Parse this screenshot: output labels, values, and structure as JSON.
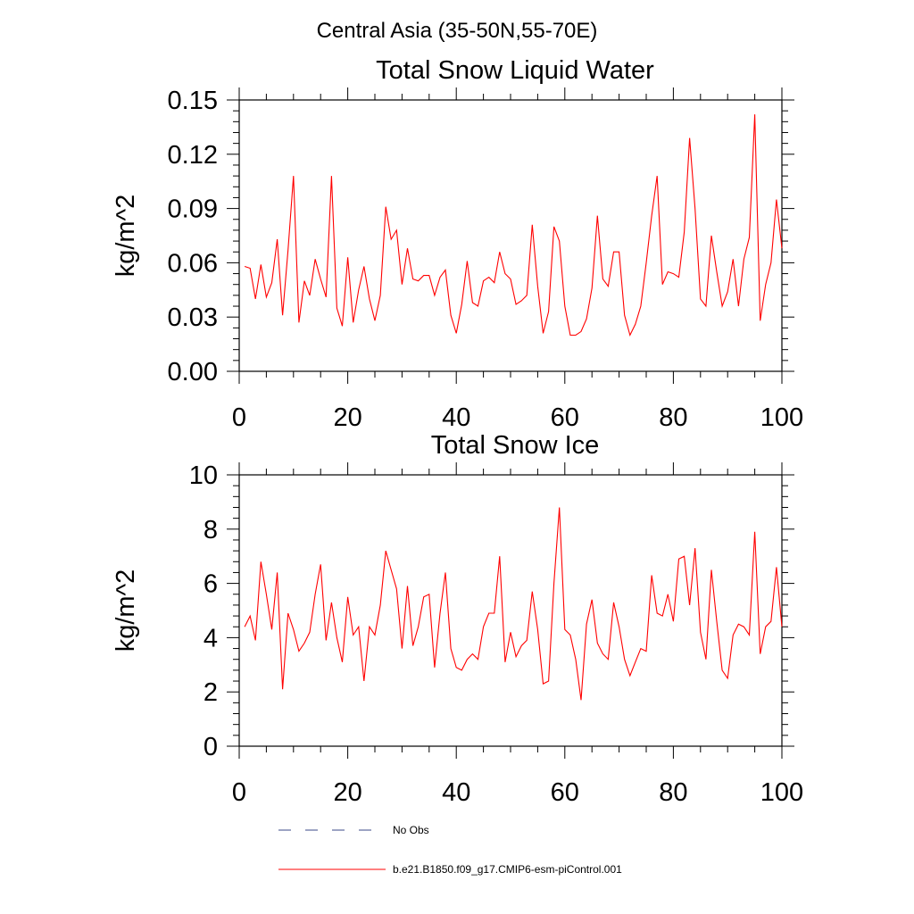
{
  "figure_title": "Central Asia (35-50N,55-70E)",
  "colors": {
    "model_line": "#ff0000",
    "obs_line": "#3b4a8a",
    "axis": "#000000"
  },
  "legend": {
    "obs_label": "No Obs",
    "model_label": "b.e21.B1850.f09_g17.CMIP6-esm-piControl.001"
  },
  "chart_data": [
    {
      "type": "line",
      "title": "Total Snow Liquid Water",
      "xlabel": "",
      "ylabel": "kg/m^2",
      "xlim": [
        0,
        100
      ],
      "ylim": [
        0,
        0.15
      ],
      "xticks": [
        0,
        20,
        40,
        60,
        80,
        100
      ],
      "xtick_labels": [
        "0",
        "20",
        "40",
        "60",
        "80",
        "100"
      ],
      "yticks": [
        0,
        0.03,
        0.06,
        0.09,
        0.12,
        0.15
      ],
      "ytick_labels": [
        "0.00",
        "0.03",
        "0.06",
        "0.09",
        "0.12",
        "0.15"
      ],
      "series": [
        {
          "name": "b.e21.B1850.f09_g17.CMIP6-esm-piControl.001",
          "color": "#ff0000",
          "x": [
            1,
            2,
            3,
            4,
            5,
            6,
            7,
            8,
            9,
            10,
            11,
            12,
            13,
            14,
            15,
            16,
            17,
            18,
            19,
            20,
            21,
            22,
            23,
            24,
            25,
            26,
            27,
            28,
            29,
            30,
            31,
            32,
            33,
            34,
            35,
            36,
            37,
            38,
            39,
            40,
            41,
            42,
            43,
            44,
            45,
            46,
            47,
            48,
            49,
            50,
            51,
            52,
            53,
            54,
            55,
            56,
            57,
            58,
            59,
            60,
            61,
            62,
            63,
            64,
            65,
            66,
            67,
            68,
            69,
            70,
            71,
            72,
            73,
            74,
            75,
            76,
            77,
            78,
            79,
            80,
            81,
            82,
            83,
            84,
            85,
            86,
            87,
            88,
            89,
            90,
            91,
            92,
            93,
            94,
            95,
            96,
            97,
            98,
            99,
            100
          ],
          "values": [
            0.058,
            0.057,
            0.04,
            0.059,
            0.041,
            0.049,
            0.073,
            0.031,
            0.067,
            0.108,
            0.027,
            0.05,
            0.042,
            0.062,
            0.051,
            0.041,
            0.108,
            0.035,
            0.025,
            0.063,
            0.027,
            0.045,
            0.058,
            0.04,
            0.028,
            0.042,
            0.091,
            0.073,
            0.078,
            0.048,
            0.068,
            0.051,
            0.05,
            0.053,
            0.053,
            0.042,
            0.052,
            0.056,
            0.031,
            0.021,
            0.037,
            0.061,
            0.038,
            0.036,
            0.05,
            0.052,
            0.049,
            0.066,
            0.054,
            0.051,
            0.037,
            0.039,
            0.042,
            0.081,
            0.047,
            0.021,
            0.033,
            0.08,
            0.072,
            0.036,
            0.02,
            0.02,
            0.022,
            0.029,
            0.046,
            0.086,
            0.051,
            0.047,
            0.066,
            0.066,
            0.031,
            0.02,
            0.026,
            0.036,
            0.06,
            0.086,
            0.108,
            0.048,
            0.055,
            0.054,
            0.052,
            0.077,
            0.129,
            0.09,
            0.04,
            0.036,
            0.075,
            0.055,
            0.036,
            0.044,
            0.062,
            0.036,
            0.062,
            0.074,
            0.142,
            0.028,
            0.048,
            0.06,
            0.095,
            0.068
          ]
        }
      ]
    },
    {
      "type": "line",
      "title": "Total Snow Ice",
      "xlabel": "",
      "ylabel": "kg/m^2",
      "xlim": [
        0,
        100
      ],
      "ylim": [
        0,
        10
      ],
      "xticks": [
        0,
        20,
        40,
        60,
        80,
        100
      ],
      "xtick_labels": [
        "0",
        "20",
        "40",
        "60",
        "80",
        "100"
      ],
      "yticks": [
        0,
        2,
        4,
        6,
        8,
        10
      ],
      "ytick_labels": [
        "0",
        "2",
        "4",
        "6",
        "8",
        "10"
      ],
      "series": [
        {
          "name": "b.e21.B1850.f09_g17.CMIP6-esm-piControl.001",
          "color": "#ff0000",
          "x": [
            1,
            2,
            3,
            4,
            5,
            6,
            7,
            8,
            9,
            10,
            11,
            12,
            13,
            14,
            15,
            16,
            17,
            18,
            19,
            20,
            21,
            22,
            23,
            24,
            25,
            26,
            27,
            28,
            29,
            30,
            31,
            32,
            33,
            34,
            35,
            36,
            37,
            38,
            39,
            40,
            41,
            42,
            43,
            44,
            45,
            46,
            47,
            48,
            49,
            50,
            51,
            52,
            53,
            54,
            55,
            56,
            57,
            58,
            59,
            60,
            61,
            62,
            63,
            64,
            65,
            66,
            67,
            68,
            69,
            70,
            71,
            72,
            73,
            74,
            75,
            76,
            77,
            78,
            79,
            80,
            81,
            82,
            83,
            84,
            85,
            86,
            87,
            88,
            89,
            90,
            91,
            92,
            93,
            94,
            95,
            96,
            97,
            98,
            99,
            100
          ],
          "values": [
            4.4,
            4.8,
            3.9,
            6.8,
            5.6,
            4.3,
            6.4,
            2.1,
            4.9,
            4.3,
            3.5,
            3.8,
            4.2,
            5.6,
            6.7,
            3.9,
            5.3,
            4.0,
            3.1,
            5.5,
            4.1,
            4.4,
            2.4,
            4.4,
            4.1,
            5.2,
            7.2,
            6.5,
            5.8,
            3.6,
            5.9,
            3.7,
            4.4,
            5.5,
            5.6,
            2.9,
            4.9,
            6.4,
            3.6,
            2.9,
            2.8,
            3.2,
            3.4,
            3.2,
            4.4,
            4.9,
            4.9,
            7.0,
            3.1,
            4.2,
            3.3,
            3.7,
            3.9,
            5.7,
            4.3,
            2.3,
            2.4,
            6.0,
            8.8,
            4.3,
            4.1,
            3.2,
            1.7,
            4.5,
            5.4,
            3.8,
            3.4,
            3.2,
            5.3,
            4.4,
            3.2,
            2.6,
            3.1,
            3.6,
            3.5,
            6.3,
            4.9,
            4.8,
            5.6,
            4.6,
            6.9,
            7.0,
            5.2,
            7.3,
            4.2,
            3.2,
            6.5,
            4.6,
            2.8,
            2.5,
            4.1,
            4.5,
            4.4,
            4.1,
            7.9,
            3.4,
            4.4,
            4.6,
            6.6,
            4.4
          ]
        }
      ]
    }
  ]
}
